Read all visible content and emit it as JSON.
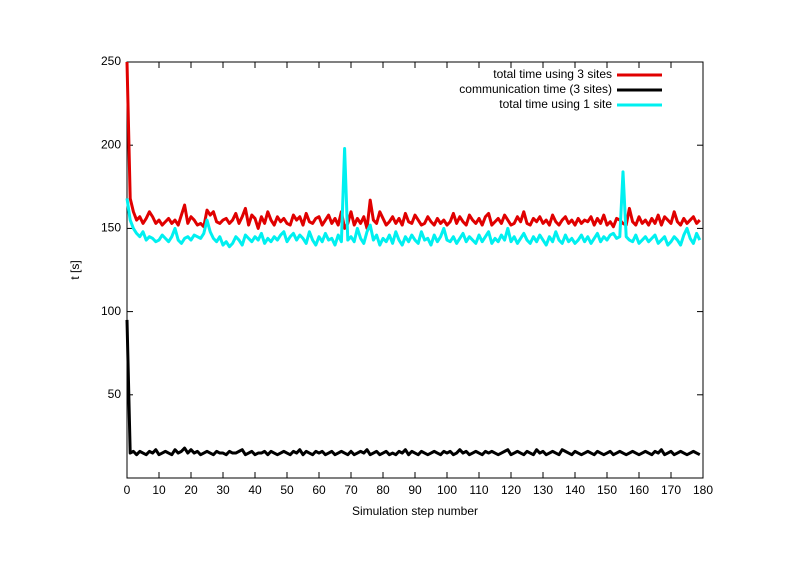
{
  "chart_data": {
    "type": "line",
    "xlabel": "Simulation step number",
    "ylabel": "t [s]",
    "x": [
      0,
      1,
      2,
      3,
      4,
      5,
      6,
      7,
      8,
      9,
      10,
      11,
      12,
      13,
      14,
      15,
      16,
      17,
      18,
      19,
      20,
      21,
      22,
      23,
      24,
      25,
      26,
      27,
      28,
      29,
      30,
      31,
      32,
      33,
      34,
      35,
      36,
      37,
      38,
      39,
      40,
      41,
      42,
      43,
      44,
      45,
      46,
      47,
      48,
      49,
      50,
      51,
      52,
      53,
      54,
      55,
      56,
      57,
      58,
      59,
      60,
      61,
      62,
      63,
      64,
      65,
      66,
      67,
      68,
      69,
      70,
      71,
      72,
      73,
      74,
      75,
      76,
      77,
      78,
      79,
      80,
      81,
      82,
      83,
      84,
      85,
      86,
      87,
      88,
      89,
      90,
      91,
      92,
      93,
      94,
      95,
      96,
      97,
      98,
      99,
      100,
      101,
      102,
      103,
      104,
      105,
      106,
      107,
      108,
      109,
      110,
      111,
      112,
      113,
      114,
      115,
      116,
      117,
      118,
      119,
      120,
      121,
      122,
      123,
      124,
      125,
      126,
      127,
      128,
      129,
      130,
      131,
      132,
      133,
      134,
      135,
      136,
      137,
      138,
      139,
      140,
      141,
      142,
      143,
      144,
      145,
      146,
      147,
      148,
      149,
      150,
      151,
      152,
      153,
      154,
      155,
      156,
      157,
      158,
      159,
      160,
      161,
      162,
      163,
      164,
      165,
      166,
      167,
      168,
      169,
      170,
      171,
      172,
      173,
      174,
      175,
      176,
      177,
      178,
      179
    ],
    "series": [
      {
        "name": "total time using 3 sites",
        "color": "#e00000",
        "values": [
          250,
          168,
          160,
          155,
          157,
          153,
          156,
          160,
          157,
          153,
          155,
          152,
          154,
          156,
          153,
          155,
          152,
          158,
          164,
          153,
          157,
          155,
          152,
          153,
          151,
          161,
          158,
          160,
          154,
          153,
          155,
          156,
          153,
          155,
          159,
          153,
          157,
          162,
          152,
          158,
          156,
          150,
          157,
          153,
          160,
          155,
          152,
          157,
          154,
          156,
          153,
          152,
          158,
          155,
          157,
          152,
          159,
          154,
          153,
          156,
          157,
          152,
          155,
          158,
          153,
          156,
          152,
          160,
          150,
          153,
          160,
          152,
          156,
          153,
          157,
          150,
          167,
          155,
          153,
          160,
          156,
          152,
          154,
          157,
          153,
          156,
          152,
          159,
          154,
          153,
          158,
          155,
          152,
          153,
          157,
          154,
          152,
          156,
          153,
          155,
          152,
          154,
          159,
          153,
          157,
          154,
          152,
          158,
          155,
          153,
          156,
          152,
          157,
          159,
          152,
          154,
          156,
          153,
          158,
          155,
          152,
          153,
          157,
          154,
          160,
          153,
          152,
          156,
          154,
          157,
          153,
          155,
          152,
          158,
          154,
          152,
          155,
          157,
          153,
          155,
          152,
          156,
          153,
          155,
          154,
          157,
          152,
          156,
          153,
          158,
          152,
          154,
          151,
          156,
          155,
          153,
          152,
          162,
          154,
          152,
          157,
          153,
          155,
          152,
          156,
          153,
          158,
          152,
          157,
          155,
          153,
          160,
          154,
          152,
          156,
          153,
          155,
          157,
          153,
          155
        ]
      },
      {
        "name": "communication time (3 sites)",
        "color": "#000000",
        "values": [
          95,
          15,
          16,
          14,
          16,
          15,
          14,
          16,
          15,
          17,
          14,
          15,
          16,
          15,
          14,
          17,
          15,
          16,
          18,
          15,
          17,
          15,
          16,
          14,
          15,
          16,
          15,
          14,
          16,
          15,
          15,
          14,
          16,
          15,
          15,
          16,
          17,
          14,
          15,
          16,
          14,
          15,
          15,
          16,
          14,
          16,
          15,
          14,
          15,
          16,
          15,
          14,
          16,
          15,
          17,
          14,
          16,
          15,
          14,
          16,
          15,
          16,
          14,
          15,
          16,
          14,
          15,
          16,
          15,
          14,
          16,
          14,
          15,
          16,
          15,
          17,
          14,
          15,
          16,
          14,
          15,
          16,
          14,
          15,
          14,
          16,
          15,
          17,
          14,
          16,
          15,
          14,
          16,
          15,
          14,
          15,
          16,
          15,
          14,
          16,
          15,
          16,
          14,
          15,
          17,
          15,
          16,
          14,
          15,
          16,
          15,
          14,
          16,
          15,
          16,
          15,
          14,
          15,
          16,
          17,
          14,
          15,
          16,
          15,
          14,
          16,
          15,
          14,
          17,
          15,
          16,
          14,
          15,
          16,
          15,
          14,
          17,
          16,
          15,
          14,
          16,
          15,
          14,
          15,
          16,
          15,
          14,
          16,
          15,
          14,
          15,
          16,
          14,
          15,
          16,
          15,
          14,
          15,
          16,
          15,
          14,
          15,
          16,
          15,
          14,
          16,
          15,
          17,
          14,
          15,
          16,
          14,
          15,
          16,
          15,
          14,
          15,
          16,
          15,
          14
        ]
      },
      {
        "name": "total time using 1 site",
        "color": "#00f0f0",
        "values": [
          168,
          155,
          150,
          147,
          145,
          148,
          143,
          145,
          144,
          142,
          143,
          146,
          144,
          142,
          145,
          150,
          143,
          141,
          144,
          145,
          143,
          146,
          145,
          144,
          147,
          155,
          148,
          144,
          142,
          145,
          140,
          142,
          139,
          141,
          145,
          143,
          140,
          146,
          144,
          142,
          145,
          143,
          147,
          141,
          144,
          142,
          145,
          143,
          146,
          148,
          142,
          145,
          147,
          143,
          146,
          144,
          141,
          148,
          143,
          140,
          145,
          142,
          147,
          143,
          144,
          140,
          146,
          142,
          198,
          143,
          145,
          142,
          150,
          144,
          141,
          148,
          152,
          143,
          146,
          140,
          144,
          142,
          146,
          141,
          148,
          143,
          140,
          145,
          142,
          146,
          143,
          141,
          148,
          143,
          144,
          140,
          146,
          142,
          145,
          150,
          143,
          142,
          145,
          141,
          144,
          147,
          142,
          145,
          143,
          141,
          146,
          142,
          145,
          148,
          141,
          144,
          142,
          146,
          143,
          150,
          142,
          145,
          141,
          144,
          147,
          143,
          141,
          145,
          142,
          146,
          143,
          140,
          145,
          142,
          148,
          143,
          141,
          146,
          142,
          144,
          141,
          143,
          146,
          142,
          145,
          141,
          144,
          147,
          142,
          145,
          143,
          146,
          147,
          144,
          145,
          184,
          145,
          143,
          142,
          146,
          141,
          143,
          145,
          142,
          144,
          146,
          141,
          143,
          145,
          140,
          142,
          145,
          143,
          140,
          146,
          150,
          144,
          141,
          147,
          143
        ]
      }
    ],
    "xlim": [
      0,
      180
    ],
    "xticks": [
      0,
      10,
      20,
      30,
      40,
      50,
      60,
      70,
      80,
      90,
      100,
      110,
      120,
      130,
      140,
      150,
      160,
      170,
      180
    ],
    "ylim": [
      0,
      250
    ],
    "yticks": [
      50,
      100,
      150,
      200,
      250
    ],
    "legend": "upper right"
  }
}
